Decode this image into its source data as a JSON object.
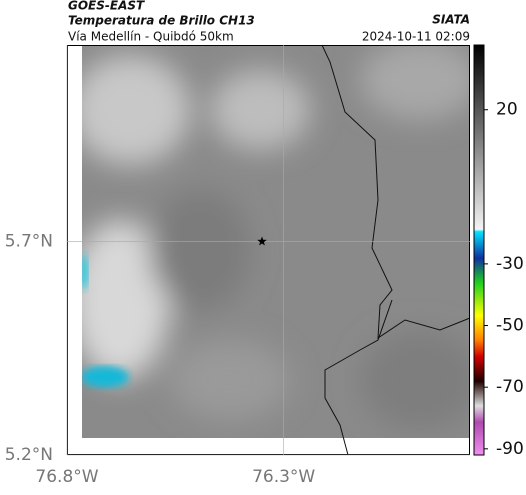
{
  "header": {
    "satellite": "GOES-EAST",
    "product": "Temperatura de Brillo CH13",
    "source": "SIATA",
    "region": "Vía Medellín - Quibdó 50km",
    "timestamp": "2024-10-11 02:09"
  },
  "map": {
    "lon_lim": [
      -76.8,
      -75.87
    ],
    "lat_lim": [
      5.2,
      6.16
    ],
    "lon_ticks": [
      {
        "value": -76.8,
        "label": "76.8°W"
      },
      {
        "value": -76.3,
        "label": "76.3°W"
      }
    ],
    "lat_ticks": [
      {
        "value": 5.7,
        "label": "5.7°N"
      },
      {
        "value": 5.2,
        "label": "5.2°N"
      }
    ],
    "grid": true,
    "marker": {
      "lon": -76.35,
      "lat": 5.7
    }
  },
  "colorbar": {
    "lim": [
      41,
      -92
    ],
    "ticks": [
      20,
      -30,
      -50,
      -70,
      -90
    ]
  }
}
